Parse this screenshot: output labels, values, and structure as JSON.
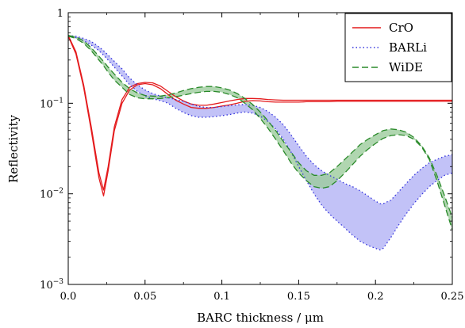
{
  "chart_data": {
    "type": "line",
    "xlabel": "BARC thickness / μm",
    "ylabel": "Reflectivity",
    "xlim": [
      0,
      0.25
    ],
    "ylim": [
      0.001,
      1
    ],
    "yscale": "log",
    "grid": false,
    "legend_position": "top-right",
    "x_ticks": [
      "0.0",
      "0.05",
      "0.1",
      "0.15",
      "0.2",
      "0.25"
    ],
    "y_ticks": [
      {
        "base": "10",
        "exp": "−3",
        "value": 0.001
      },
      {
        "base": "10",
        "exp": "−2",
        "value": 0.01
      },
      {
        "base": "10",
        "exp": "−1",
        "value": 0.1
      },
      {
        "base": "1",
        "exp": "",
        "value": 1
      }
    ],
    "x": [
      0.0,
      0.005,
      0.01,
      0.015,
      0.02,
      0.023,
      0.026,
      0.03,
      0.035,
      0.04,
      0.045,
      0.05,
      0.055,
      0.06,
      0.065,
      0.07,
      0.075,
      0.08,
      0.085,
      0.09,
      0.095,
      0.1,
      0.105,
      0.11,
      0.115,
      0.12,
      0.125,
      0.13,
      0.135,
      0.14,
      0.145,
      0.15,
      0.155,
      0.16,
      0.165,
      0.17,
      0.175,
      0.18,
      0.185,
      0.19,
      0.195,
      0.2,
      0.203,
      0.205,
      0.21,
      0.215,
      0.22,
      0.225,
      0.23,
      0.235,
      0.24,
      0.245,
      0.25
    ],
    "series": [
      {
        "name": "CrO",
        "color": "#e41a1c",
        "style": "solid",
        "lower": [
          0.55,
          0.35,
          0.15,
          0.05,
          0.015,
          0.0095,
          0.018,
          0.05,
          0.1,
          0.14,
          0.16,
          0.165,
          0.16,
          0.145,
          0.125,
          0.108,
          0.098,
          0.09,
          0.088,
          0.088,
          0.09,
          0.093,
          0.096,
          0.1,
          0.105,
          0.107,
          0.106,
          0.104,
          0.103,
          0.103,
          0.103,
          0.103,
          0.104,
          0.104,
          0.104,
          0.104,
          0.105,
          0.105,
          0.105,
          0.105,
          0.105,
          0.105,
          0.105,
          0.105,
          0.105,
          0.105,
          0.105,
          0.105,
          0.105,
          0.105,
          0.105,
          0.105,
          0.105
        ],
        "upper": [
          0.56,
          0.37,
          0.16,
          0.055,
          0.017,
          0.011,
          0.02,
          0.055,
          0.11,
          0.15,
          0.165,
          0.17,
          0.168,
          0.155,
          0.135,
          0.118,
          0.106,
          0.098,
          0.095,
          0.095,
          0.098,
          0.102,
          0.106,
          0.11,
          0.113,
          0.113,
          0.112,
          0.11,
          0.109,
          0.108,
          0.108,
          0.108,
          0.108,
          0.108,
          0.108,
          0.108,
          0.108,
          0.108,
          0.108,
          0.108,
          0.108,
          0.108,
          0.108,
          0.108,
          0.108,
          0.108,
          0.108,
          0.108,
          0.108,
          0.108,
          0.108,
          0.108,
          0.108
        ]
      },
      {
        "name": "BARLi",
        "color": "#3333dd",
        "fill": "#b3b3f5",
        "style": "dotted",
        "lower": [
          0.55,
          0.53,
          0.49,
          0.44,
          0.38,
          0.34,
          0.3,
          0.25,
          0.2,
          0.16,
          0.135,
          0.12,
          0.112,
          0.107,
          0.1,
          0.088,
          0.079,
          0.073,
          0.07,
          0.07,
          0.071,
          0.073,
          0.075,
          0.078,
          0.08,
          0.078,
          0.072,
          0.063,
          0.052,
          0.04,
          0.029,
          0.02,
          0.014,
          0.01,
          0.0075,
          0.006,
          0.005,
          0.0042,
          0.0035,
          0.003,
          0.0027,
          0.0025,
          0.0024,
          0.0025,
          0.0033,
          0.0045,
          0.006,
          0.0078,
          0.0098,
          0.012,
          0.014,
          0.016,
          0.017
        ],
        "upper": [
          0.56,
          0.55,
          0.52,
          0.48,
          0.42,
          0.38,
          0.34,
          0.29,
          0.24,
          0.19,
          0.16,
          0.14,
          0.128,
          0.12,
          0.115,
          0.11,
          0.105,
          0.098,
          0.092,
          0.09,
          0.09,
          0.092,
          0.094,
          0.096,
          0.097,
          0.095,
          0.09,
          0.081,
          0.07,
          0.058,
          0.045,
          0.034,
          0.026,
          0.021,
          0.018,
          0.016,
          0.0145,
          0.013,
          0.012,
          0.0108,
          0.0095,
          0.0083,
          0.0078,
          0.0078,
          0.0085,
          0.0105,
          0.013,
          0.016,
          0.019,
          0.022,
          0.024,
          0.026,
          0.027
        ]
      },
      {
        "name": "WiDE",
        "color": "#2a8a2a",
        "fill": "#9ccc9c",
        "style": "dashed",
        "lower": [
          0.55,
          0.52,
          0.46,
          0.38,
          0.3,
          0.26,
          0.22,
          0.18,
          0.15,
          0.125,
          0.115,
          0.112,
          0.112,
          0.113,
          0.115,
          0.118,
          0.123,
          0.128,
          0.132,
          0.135,
          0.135,
          0.132,
          0.125,
          0.115,
          0.1,
          0.085,
          0.068,
          0.053,
          0.04,
          0.03,
          0.022,
          0.017,
          0.014,
          0.012,
          0.0115,
          0.012,
          0.014,
          0.017,
          0.021,
          0.026,
          0.031,
          0.036,
          0.039,
          0.041,
          0.044,
          0.045,
          0.044,
          0.04,
          0.033,
          0.024,
          0.014,
          0.0075,
          0.004
        ],
        "upper": [
          0.56,
          0.54,
          0.49,
          0.41,
          0.33,
          0.29,
          0.25,
          0.21,
          0.17,
          0.145,
          0.13,
          0.122,
          0.12,
          0.12,
          0.124,
          0.13,
          0.138,
          0.145,
          0.15,
          0.153,
          0.153,
          0.148,
          0.14,
          0.128,
          0.113,
          0.097,
          0.08,
          0.064,
          0.05,
          0.038,
          0.029,
          0.022,
          0.018,
          0.016,
          0.016,
          0.017,
          0.02,
          0.024,
          0.029,
          0.035,
          0.04,
          0.045,
          0.048,
          0.05,
          0.052,
          0.051,
          0.048,
          0.042,
          0.034,
          0.025,
          0.016,
          0.0095,
          0.0055
        ]
      }
    ]
  }
}
